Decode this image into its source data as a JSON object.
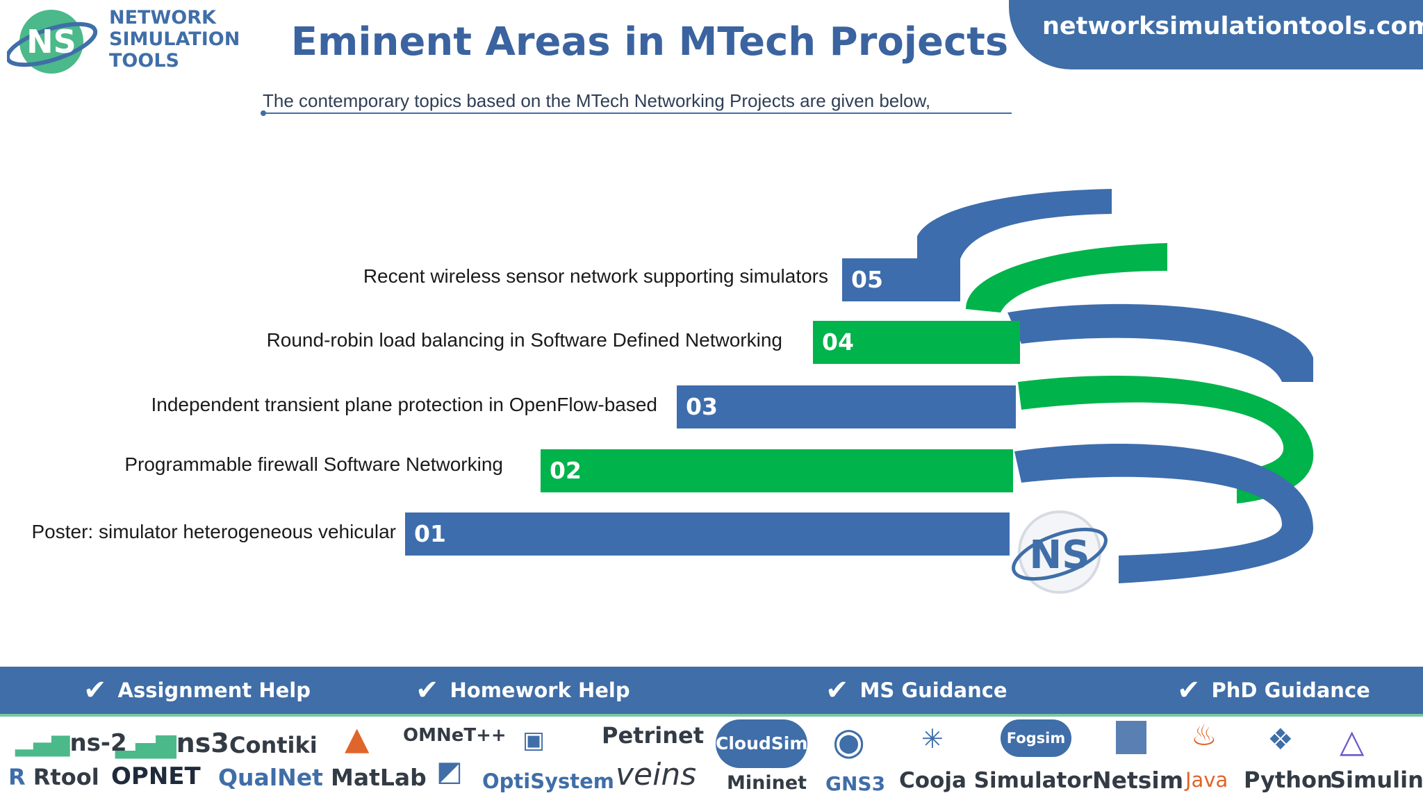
{
  "header": {
    "logo_initials": "NS",
    "brand_lines": [
      "NETWORK",
      "SIMULATION",
      "TOOLS"
    ],
    "title": "Eminent Areas in MTech Projects",
    "site_url": "networksimulationtools.com",
    "subtitle": "The contemporary topics   based on the  MTech Networking Projects are given below,"
  },
  "items": [
    {
      "number": "05",
      "label": "Recent  wireless sensor network supporting simulators",
      "color": "#3d6dad"
    },
    {
      "number": "04",
      "label": "Round-robin  load balancing in Software Defined Networking",
      "color": "#00b34a"
    },
    {
      "number": "03",
      "label": "Independent transient plane  protection in OpenFlow-based",
      "color": "#3d6dad"
    },
    {
      "number": "02",
      "label": "Programmable firewall  Software  Networking",
      "color": "#00b34a"
    },
    {
      "number": "01",
      "label": "Poster: simulator heterogeneous vehicular",
      "color": "#3d6dad"
    }
  ],
  "emblem_text": "NS",
  "services": [
    "Assignment Help",
    "Homework Help",
    "MS  Guidance",
    "PhD  Guidance"
  ],
  "tools_top": [
    "ns-2",
    "ns3",
    "Contiki",
    "OMNeT++",
    "Petrinet",
    "CloudSim",
    "Fogsim"
  ],
  "tools_bottom": [
    "Rtool",
    "OPNET",
    "QualNet",
    "MatLab",
    "OptiSystem",
    "veins",
    "Mininet",
    "GNS3",
    "Cooja Simulator",
    "Netsim",
    "Java",
    "Python",
    "Simulink"
  ],
  "colors": {
    "blue": "#3d6dad",
    "green": "#00b34a",
    "title": "#3a63a0"
  }
}
